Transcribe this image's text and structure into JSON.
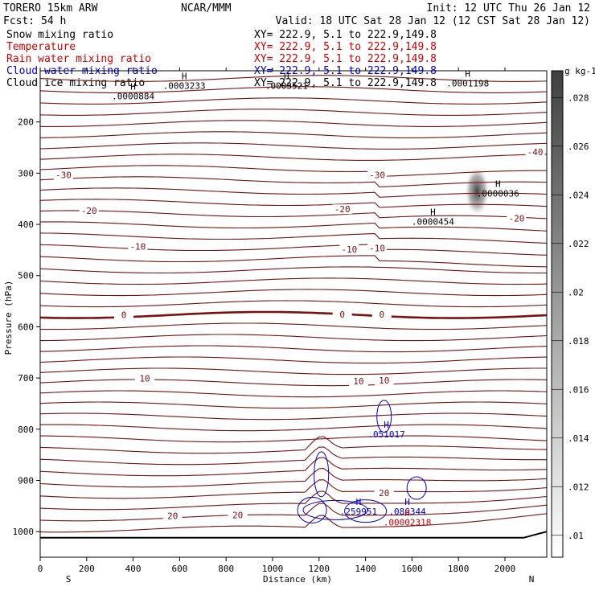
{
  "header": {
    "model": "TORERO  15km ARW",
    "org": "NCAR/MMM",
    "init": "Init: 12 UTC Thu 26 Jan 12",
    "fcst": "Fcst:   54 h",
    "valid": "Valid: 18 UTC Sat 28 Jan 12 (12 CST Sat 28 Jan 12)"
  },
  "fields": [
    {
      "name": "Snow mixing ratio",
      "xy": "XY= 222.9,  5.1 to 222.9,149.8",
      "color": "#000000"
    },
    {
      "name": "Temperature",
      "xy": "XY= 222.9,  5.1 to 222.9,149.8",
      "color": "#cc0000"
    },
    {
      "name": "Rain water mixing ratio",
      "xy": "XY= 222.9,  5.1 to 222.9,149.8",
      "color": "#cc0000"
    },
    {
      "name": "Cloud water mixing ratio",
      "xy": "XY= 222.9,  5.1 to 222.9,149.8",
      "color": "#0000cc"
    },
    {
      "name": "Cloud ice mixing ratio",
      "xy": "XY= 222.9,  5.1 to 222.9,149.8",
      "color": "#000000"
    }
  ],
  "chart_data": {
    "type": "contour-cross-section",
    "xlabel": "Distance (km)",
    "ylabel": "Pressure (hPa)",
    "xlim": [
      0,
      2180
    ],
    "ylim": [
      1050,
      100
    ],
    "x_ticks": [
      0,
      200,
      400,
      600,
      800,
      1000,
      1200,
      1400,
      1600,
      1800,
      2000
    ],
    "y_ticks": [
      200,
      300,
      400,
      500,
      600,
      700,
      800,
      900,
      1000
    ],
    "direction_left": "S",
    "direction_right": "N",
    "colorbar": {
      "unit": "g kg-1",
      "ticks": [
        ".01",
        ".012",
        ".014",
        ".016",
        ".018",
        ".02",
        ".022",
        ".024",
        ".026",
        ".028"
      ]
    },
    "temperature_labels": [
      {
        "text": "-30",
        "x": 100,
        "p": 305
      },
      {
        "text": "-30",
        "x": 1450,
        "p": 305
      },
      {
        "text": "-40",
        "x": 2130,
        "p": 260
      },
      {
        "text": "-20",
        "x": 210,
        "p": 375
      },
      {
        "text": "-20",
        "x": 1300,
        "p": 372
      },
      {
        "text": "-20",
        "x": 2050,
        "p": 390
      },
      {
        "text": "-10",
        "x": 420,
        "p": 445
      },
      {
        "text": "-10",
        "x": 1330,
        "p": 450
      },
      {
        "text": "-10",
        "x": 1450,
        "p": 448
      },
      {
        "text": "0",
        "x": 360,
        "p": 578
      },
      {
        "text": "0",
        "x": 1300,
        "p": 577
      },
      {
        "text": "0",
        "x": 1470,
        "p": 577
      },
      {
        "text": "10",
        "x": 450,
        "p": 702
      },
      {
        "text": "10",
        "x": 1370,
        "p": 708
      },
      {
        "text": "10",
        "x": 1480,
        "p": 706
      },
      {
        "text": "20",
        "x": 1480,
        "p": 926
      },
      {
        "text": "20",
        "x": 570,
        "p": 971
      },
      {
        "text": "20",
        "x": 850,
        "p": 969
      }
    ],
    "max_labels": [
      {
        "mark": "H",
        "value": ".0000884",
        "x": 400,
        "p": 140,
        "color": "#000000"
      },
      {
        "mark": "H",
        "value": ".0003233",
        "x": 620,
        "p": 120,
        "color": "#000000"
      },
      {
        "mark": "H",
        "value": ".0003521",
        "x": 1060,
        "p": 120,
        "color": "#000000"
      },
      {
        "mark": "H",
        "value": ".0001198",
        "x": 1840,
        "p": 115,
        "color": "#000000"
      },
      {
        "mark": "H",
        "value": ".0000036",
        "x": 1970,
        "p": 330,
        "color": "#000000"
      },
      {
        "mark": "H",
        "value": ".0000454",
        "x": 1690,
        "p": 385,
        "color": "#000000"
      },
      {
        "mark": "H",
        "value": ".051017",
        "x": 1490,
        "p": 800,
        "color": "#0000cc"
      },
      {
        "mark": "H",
        "value": ".259951",
        "x": 1370,
        "p": 951,
        "color": "#0000cc"
      },
      {
        "mark": "H",
        "value": ".086344",
        "x": 1580,
        "p": 951,
        "color": "#0000cc"
      },
      {
        "mark": "H",
        "value": ".00002318",
        "x": 1580,
        "p": 972,
        "color": "#cc0000"
      }
    ]
  }
}
